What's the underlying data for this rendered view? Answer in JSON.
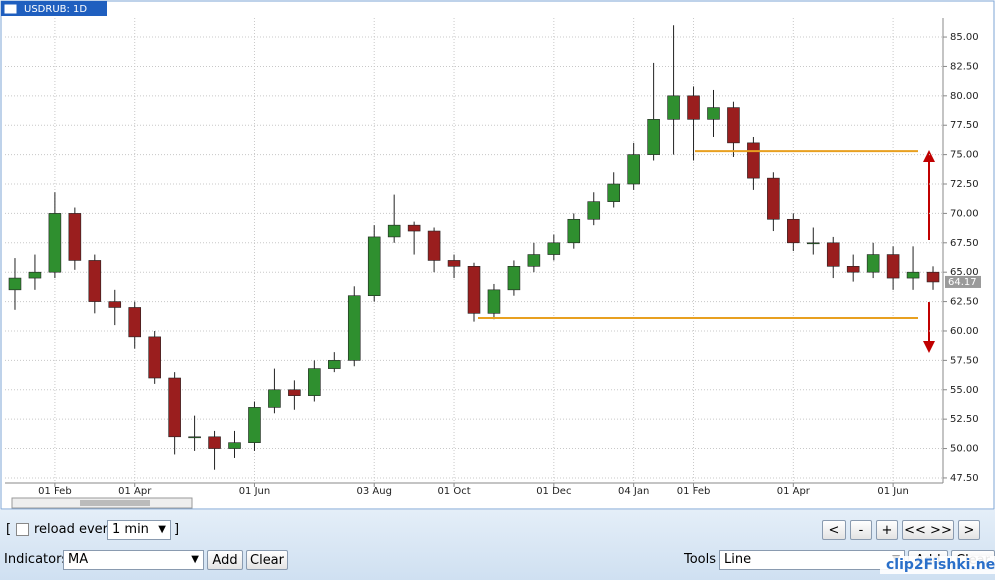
{
  "chart_data": {
    "type": "candlestick",
    "title": "USDRUB: 1D",
    "categories": [
      null,
      null,
      "01 Feb",
      null,
      null,
      null,
      "01 Apr",
      null,
      null,
      null,
      null,
      null,
      "01 Jun",
      null,
      null,
      null,
      null,
      null,
      "03 Aug",
      null,
      null,
      null,
      "01 Oct",
      null,
      null,
      null,
      null,
      "01 Dec",
      null,
      null,
      null,
      "04 Jan",
      null,
      null,
      "01 Feb",
      null,
      null,
      null,
      null,
      "01 Apr",
      null,
      null,
      null,
      null,
      "01 Jun",
      null,
      null
    ],
    "open": [
      63.5,
      64.5,
      65,
      70,
      66,
      62.5,
      62,
      59.5,
      56,
      51,
      51,
      50,
      50.5,
      53.5,
      55,
      54.5,
      56.8,
      57.5,
      63,
      68,
      69,
      68.5,
      66,
      65.5,
      61.5,
      63.5,
      65.5,
      66.5,
      67.5,
      69.5,
      71,
      72.5,
      75,
      78,
      80,
      78,
      79,
      76,
      73,
      69.5,
      67.5,
      67.5,
      65.5,
      65,
      66.5,
      64.5,
      65
    ],
    "high": [
      66.2,
      66.5,
      71.8,
      70.5,
      66.5,
      63.5,
      62.5,
      60,
      56.5,
      52.8,
      51.5,
      51.5,
      54,
      56.8,
      55.8,
      57.5,
      58.2,
      63.8,
      69,
      71.6,
      69.3,
      68.8,
      66.5,
      65.8,
      64,
      66,
      67.5,
      68.2,
      70,
      71.8,
      73.5,
      76,
      82.8,
      86,
      80.8,
      80.5,
      79.5,
      76.5,
      73.5,
      70,
      68.8,
      68,
      66.5,
      67.5,
      67.2,
      67.2,
      65.5
    ],
    "low": [
      61.8,
      63.5,
      64.5,
      65.2,
      61.5,
      60.5,
      58.5,
      55.5,
      49.5,
      49.8,
      48.2,
      49.2,
      49.8,
      53,
      53.3,
      54,
      56.5,
      57,
      62.5,
      67.5,
      66.5,
      65,
      64.5,
      60.8,
      61,
      63,
      65,
      66,
      67,
      69,
      70.5,
      72,
      74.5,
      75,
      74.5,
      76.5,
      74.8,
      72,
      68.5,
      66.8,
      66.5,
      64.5,
      64.2,
      64.5,
      63.5,
      63.5,
      63.5
    ],
    "close": [
      64.5,
      65,
      70,
      66,
      62.5,
      62,
      59.5,
      56,
      51,
      51,
      50,
      50.5,
      53.5,
      55,
      54.5,
      56.8,
      57.5,
      63,
      68,
      69,
      68.5,
      66,
      65.5,
      61.5,
      63.5,
      65.5,
      66.5,
      67.5,
      69.5,
      71,
      72.5,
      75,
      78,
      80,
      78,
      79,
      76,
      73,
      69.5,
      67.5,
      67.5,
      65.5,
      65,
      66.5,
      64.5,
      65,
      64.17
    ],
    "up_color": "#2f8f2f",
    "down_color": "#9a1e1e",
    "wick_color": "#222222",
    "price_label": "64.17",
    "ylim": [
      47.07,
      86.62
    ],
    "yticks": [
      {
        "value": 47.5,
        "label": "47.50"
      },
      {
        "value": 50,
        "label": "50.00"
      },
      {
        "value": 52.5,
        "label": "52.50"
      },
      {
        "value": 55,
        "label": "55.00"
      },
      {
        "value": 57.5,
        "label": "57.50"
      },
      {
        "value": 60,
        "label": "60.00"
      },
      {
        "value": 62.5,
        "label": "62.50"
      },
      {
        "value": 65,
        "label": "65.00"
      },
      {
        "value": 67.5,
        "label": "67.50"
      },
      {
        "value": 70,
        "label": "70.00"
      },
      {
        "value": 72.5,
        "label": "72.50"
      },
      {
        "value": 75,
        "label": "75.00"
      },
      {
        "value": 77.5,
        "label": "77.50"
      },
      {
        "value": 80,
        "label": "80.00"
      },
      {
        "value": 82.5,
        "label": "82.50"
      },
      {
        "value": 85,
        "label": "85.00"
      }
    ],
    "grid": true,
    "hlines": [
      {
        "value": 75.3,
        "color": "#e8a020"
      },
      {
        "value": 61.1,
        "color": "#e8a020"
      }
    ]
  },
  "controls": {
    "reload_label": "reload every",
    "reload_value": "1 min",
    "nav_buttons": [
      "<",
      "-",
      "+",
      "<< >>",
      ">"
    ],
    "indicators_label": "Indicators",
    "indicator_value": "MA",
    "add": "Add",
    "clear": "Clear",
    "tools_label": "Tools",
    "tool_value": "Line",
    "tool_add": "Add",
    "tool_clear": "Clear"
  },
  "watermark": "clip2Fishki.net"
}
